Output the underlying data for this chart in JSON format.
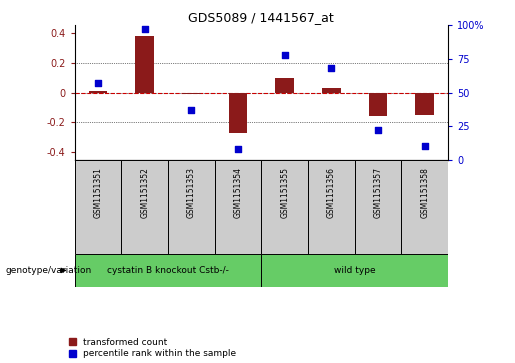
{
  "title": "GDS5089 / 1441567_at",
  "samples": [
    "GSM1151351",
    "GSM1151352",
    "GSM1151353",
    "GSM1151354",
    "GSM1151355",
    "GSM1151356",
    "GSM1151357",
    "GSM1151358"
  ],
  "red_values": [
    0.01,
    0.38,
    -0.01,
    -0.27,
    0.1,
    0.03,
    -0.16,
    -0.15
  ],
  "blue_values": [
    57,
    97,
    37,
    8,
    78,
    68,
    22,
    10
  ],
  "group1_label": "cystatin B knockout Cstb-/-",
  "group2_label": "wild type",
  "group1_count": 4,
  "group2_count": 4,
  "ylim": [
    -0.45,
    0.45
  ],
  "yticks_left": [
    -0.4,
    -0.2,
    0.0,
    0.2,
    0.4
  ],
  "yticks_right": [
    0,
    25,
    50,
    75,
    100
  ],
  "red_color": "#8B1A1A",
  "blue_color": "#0000CD",
  "green_color": "#66CC66",
  "legend_red": "transformed count",
  "legend_blue": "percentile rank within the sample",
  "zero_line_color": "#CC0000",
  "sample_box_color": "#CCCCCC",
  "bar_width": 0.4,
  "blue_marker_size": 20
}
